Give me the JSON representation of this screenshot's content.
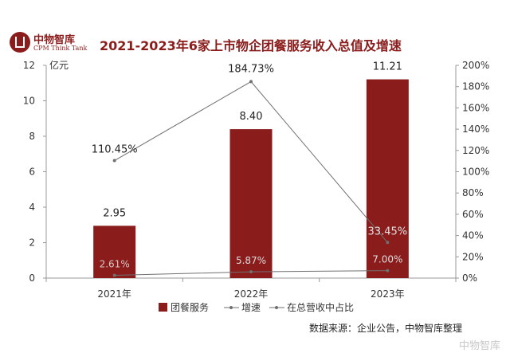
{
  "logo": {
    "name": "中物智库",
    "subtitle": "CPM Think Tank"
  },
  "source": "数据来源：企业公告，中物智库整理",
  "watermark": "中物智库",
  "colors": {
    "bar": "#8b1c1c",
    "line": "#707070",
    "axis": "#999999",
    "title": "#8b1c1c"
  },
  "chart_data": {
    "type": "bar",
    "title": "2021-2023年6家上市物企团餐服务收入总值及增速",
    "ylabel": "亿元",
    "categories": [
      "2021年",
      "2022年",
      "2023年"
    ],
    "ylim": [
      0,
      12
    ],
    "y_ticks": [
      "0",
      "2",
      "4",
      "6",
      "8",
      "10",
      "12"
    ],
    "y2lim": [
      0,
      200
    ],
    "y2_ticks": [
      "0%",
      "20%",
      "40%",
      "60%",
      "80%",
      "100%",
      "120%",
      "140%",
      "160%",
      "180%",
      "200%"
    ],
    "legend_position": "bottom",
    "series": [
      {
        "name": "团餐服务",
        "type": "bar",
        "axis": "left",
        "values": [
          2.95,
          8.4,
          11.21
        ],
        "labels": [
          "2.95",
          "8.40",
          "11.21"
        ]
      },
      {
        "name": "增速",
        "type": "line",
        "axis": "right",
        "values": [
          110.45,
          184.73,
          33.5
        ],
        "labels": [
          "110.45%",
          "184.73%",
          "33.45%"
        ]
      },
      {
        "name": "在总营收中占比",
        "type": "line",
        "axis": "right",
        "values": [
          2.6,
          5.9,
          7.0
        ],
        "labels": [
          "2.61%",
          "5.87%",
          "7.00%"
        ]
      }
    ]
  }
}
